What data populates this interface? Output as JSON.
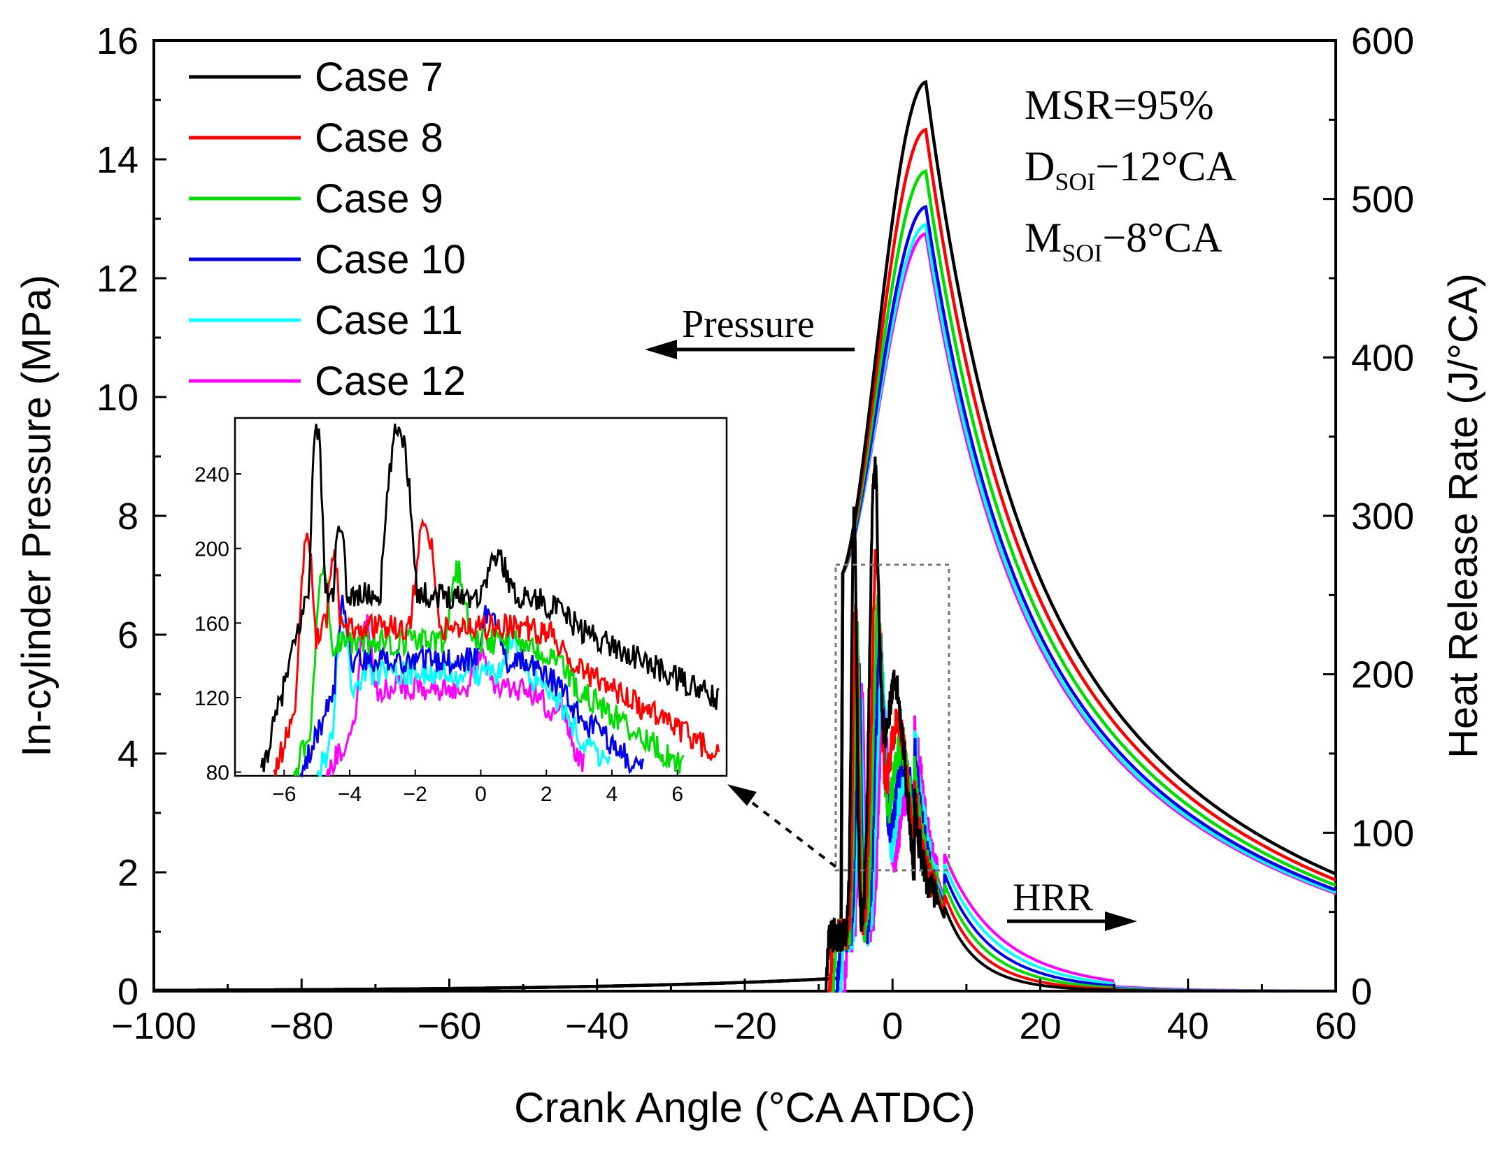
{
  "chart_data": {
    "type": "line",
    "xlabel": "Crank Angle (°CA ATDC)",
    "ylabel_left": "In-cylinder Pressure (MPa)",
    "ylabel_right": "Heat Release Rate (J/°CA)",
    "xlim": [
      -100,
      60
    ],
    "ylim_left": [
      0,
      16
    ],
    "ylim_right": [
      0,
      600
    ],
    "x_ticks": [
      "−100",
      "−80",
      "−60",
      "−40",
      "−20",
      "0",
      "20",
      "40",
      "60"
    ],
    "x_tick_values": [
      -100,
      -80,
      -60,
      -40,
      -20,
      0,
      20,
      40,
      60
    ],
    "y_left_ticks": [
      "0",
      "2",
      "4",
      "6",
      "8",
      "10",
      "12",
      "14",
      "16"
    ],
    "y_left_tick_values": [
      0,
      2,
      4,
      6,
      8,
      10,
      12,
      14,
      16
    ],
    "y_right_ticks": [
      "0",
      "100",
      "200",
      "300",
      "400",
      "500",
      "600"
    ],
    "y_right_tick_values": [
      0,
      100,
      200,
      300,
      400,
      500,
      600
    ],
    "annotations": {
      "msr": "MSR=95%",
      "dsoi_main": "D",
      "dsoi_sub": "SOI",
      "dsoi_rest": "−12°CA",
      "msoi_main": "M",
      "msoi_sub": "SOI",
      "msoi_rest": "−8°CA",
      "pressure_label": "Pressure",
      "hrr_label": "HRR"
    },
    "series": [
      {
        "name": "Case 7",
        "color": "#000000",
        "peak_pressure": 15.3,
        "peak_hrr": 268,
        "second_peak_hrr": 265,
        "tail_hrr": 185
      },
      {
        "name": "Case 8",
        "color": "#ff0000",
        "peak_pressure": 14.5,
        "peak_hrr": 205,
        "second_peak_hrr": 214,
        "tail_hrr": 160
      },
      {
        "name": "Case 9",
        "color": "#00dd00",
        "peak_pressure": 13.8,
        "peak_hrr": 190,
        "second_peak_hrr": 190,
        "tail_hrr": 140
      },
      {
        "name": "Case 10",
        "color": "#0000ee",
        "peak_pressure": 13.2,
        "peak_hrr": 170,
        "second_peak_hrr": 172,
        "tail_hrr": 130
      },
      {
        "name": "Case 11",
        "color": "#00ffff",
        "peak_pressure": 12.9,
        "peak_hrr": 160,
        "second_peak_hrr": 155,
        "tail_hrr": 120
      },
      {
        "name": "Case 12",
        "color": "#ff00ff",
        "peak_pressure": 12.75,
        "peak_hrr": 157,
        "second_peak_hrr": 140,
        "tail_hrr": 110
      }
    ],
    "inset": {
      "xlim": [
        -7.5,
        7.5
      ],
      "ylim": [
        78,
        270
      ],
      "x_ticks": [
        "−6",
        "−4",
        "−2",
        "0",
        "2",
        "4",
        "6"
      ],
      "x_tick_values": [
        -6,
        -4,
        -2,
        0,
        2,
        4,
        6
      ],
      "y_ticks": [
        "80",
        "120",
        "160",
        "200",
        "240"
      ],
      "y_tick_values": [
        80,
        120,
        160,
        200,
        240
      ]
    }
  }
}
